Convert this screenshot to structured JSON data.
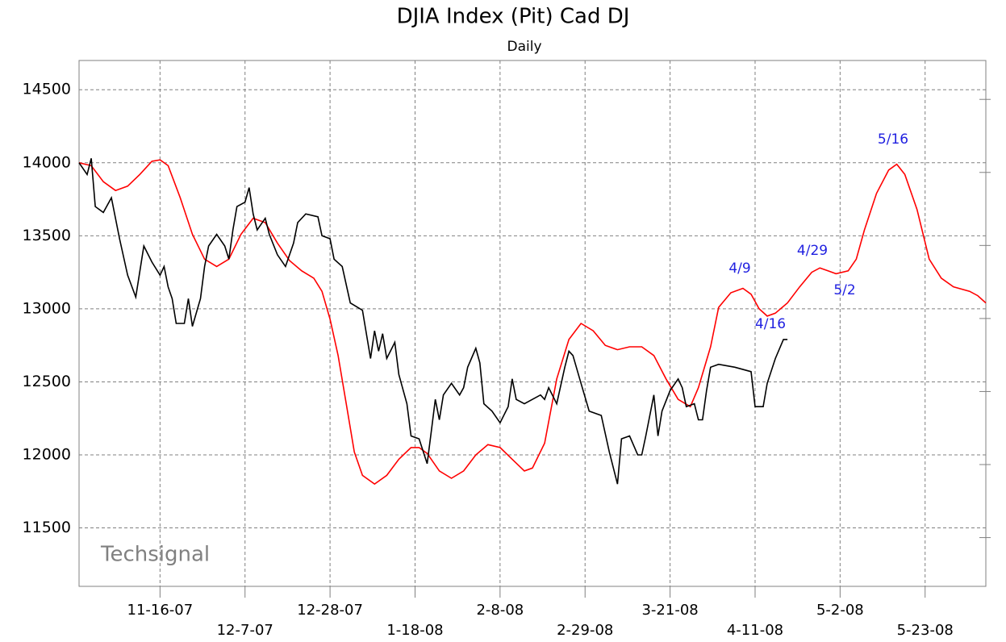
{
  "chart_data": {
    "type": "line",
    "title": "DJIA Index (Pit) Cad DJ",
    "subtitle": "Daily",
    "watermark": "Techsignal",
    "annotations": [
      "4/9",
      "4/16",
      "4/29",
      "5/2",
      "5/16"
    ],
    "annotation_color": "#1f1fe0",
    "grid": true,
    "xlim": [
      "10-27-07",
      "6-7-08"
    ],
    "xticks": [
      "11-16-07",
      "12-7-07",
      "12-28-07",
      "1-18-08",
      "2-8-08",
      "2-29-08",
      "3-21-08",
      "4-11-08",
      "5-2-08",
      "5-23-08"
    ],
    "ylim": [
      11100,
      14700
    ],
    "yticks": [
      11500,
      12000,
      12500,
      13000,
      13500,
      14000,
      14500
    ],
    "series": [
      {
        "name": "DJIA",
        "color": "#000000",
        "x": [
          "10-27-07",
          "10-29-07",
          "10-30-07",
          "10-31-07",
          "11-2-07",
          "11-4-07",
          "11-6-07",
          "11-8-07",
          "11-10-07",
          "11-12-07",
          "11-14-07",
          "11-16-07",
          "11-17-07",
          "11-18-07",
          "11-19-07",
          "11-20-07",
          "11-22-07",
          "11-23-07",
          "11-24-07",
          "11-26-07",
          "11-27-07",
          "11-28-07",
          "11-30-07",
          "12-2-07",
          "12-3-07",
          "12-4-07",
          "12-5-07",
          "12-7-07",
          "12-8-07",
          "12-9-07",
          "12-10-07",
          "12-12-07",
          "12-13-07",
          "12-15-07",
          "12-17-07",
          "12-19-07",
          "12-20-07",
          "12-22-07",
          "12-25-07",
          "12-26-07",
          "12-28-07",
          "12-29-07",
          "12-31-07",
          "1-2-08",
          "1-5-08",
          "1-7-08",
          "1-8-08",
          "1-9-08",
          "1-10-08",
          "1-11-08",
          "1-13-08",
          "1-14-08",
          "1-16-08",
          "1-17-08",
          "1-19-08",
          "1-21-08",
          "1-22-08",
          "1-23-08",
          "1-24-08",
          "1-25-08",
          "1-27-08",
          "1-29-08",
          "1-30-08",
          "1-31-08",
          "2-2-08",
          "2-3-08",
          "2-4-08",
          "2-6-08",
          "2-8-08",
          "2-10-08",
          "2-11-08",
          "2-12-08",
          "2-14-08",
          "2-18-08",
          "2-19-08",
          "2-20-08",
          "2-22-08",
          "2-24-08",
          "2-25-08",
          "2-26-08",
          "2-28-08",
          "3-1-08",
          "3-4-08",
          "3-6-08",
          "3-8-08",
          "3-9-08",
          "3-11-08",
          "3-13-08",
          "3-14-08",
          "3-15-08",
          "3-17-08",
          "3-18-08",
          "3-19-08",
          "3-21-08",
          "3-23-08",
          "3-24-08",
          "3-25-08",
          "3-27-08",
          "3-28-08",
          "3-29-08",
          "3-30-08",
          "3-31-08",
          "4-2-08",
          "4-6-08",
          "4-10-08",
          "4-11-08",
          "4-13-08",
          "4-14-08",
          "4-16-08",
          "4-18-08",
          "4-19-08"
        ],
        "values": [
          14000,
          13920,
          14030,
          13700,
          13660,
          13760,
          13480,
          13230,
          13080,
          13430,
          13320,
          13230,
          13290,
          13150,
          13070,
          12900,
          12900,
          13070,
          12880,
          13070,
          13290,
          13430,
          13510,
          13430,
          13340,
          13540,
          13700,
          13730,
          13830,
          13650,
          13540,
          13620,
          13510,
          13370,
          13290,
          13450,
          13590,
          13650,
          13630,
          13500,
          13480,
          13340,
          13290,
          13040,
          12990,
          12660,
          12850,
          12710,
          12830,
          12660,
          12770,
          12550,
          12350,
          12130,
          12110,
          11940,
          12160,
          12380,
          12240,
          12410,
          12490,
          12410,
          12460,
          12600,
          12730,
          12630,
          12350,
          12300,
          12220,
          12330,
          12520,
          12380,
          12350,
          12410,
          12380,
          12460,
          12350,
          12600,
          12710,
          12680,
          12490,
          12300,
          12270,
          12020,
          11800,
          12110,
          12130,
          12000,
          12000,
          12130,
          12410,
          12130,
          12300,
          12440,
          12520,
          12460,
          12330,
          12350,
          12240,
          12240,
          12440,
          12600,
          12620,
          12600,
          12570,
          12330,
          12330,
          12490,
          12660,
          12790,
          12790
        ]
      },
      {
        "name": "Cad",
        "color": "#ff0000",
        "x": [
          "10-27-07",
          "10-30-07",
          "11-2-07",
          "11-5-07",
          "11-8-07",
          "11-11-07",
          "11-14-07",
          "11-16-07",
          "11-18-07",
          "11-21-07",
          "11-24-07",
          "11-27-07",
          "11-30-07",
          "12-3-07",
          "12-6-07",
          "12-9-07",
          "12-12-07",
          "12-15-07",
          "12-18-07",
          "12-21-07",
          "12-24-07",
          "12-26-07",
          "12-28-07",
          "12-30-07",
          "1-1-08",
          "1-3-08",
          "1-5-08",
          "1-8-08",
          "1-11-08",
          "1-14-08",
          "1-17-08",
          "1-19-08",
          "1-21-08",
          "1-24-08",
          "1-27-08",
          "1-30-08",
          "2-2-08",
          "2-5-08",
          "2-8-08",
          "2-11-08",
          "2-14-08",
          "2-16-08",
          "2-19-08",
          "2-22-08",
          "2-25-08",
          "2-28-08",
          "3-2-08",
          "3-5-08",
          "3-8-08",
          "3-11-08",
          "3-14-08",
          "3-17-08",
          "3-20-08",
          "3-23-08",
          "3-26-08",
          "3-28-08",
          "3-31-08",
          "4-2-08",
          "4-5-08",
          "4-8-08",
          "4-10-08",
          "4-12-08",
          "4-14-08",
          "4-16-08",
          "4-19-08",
          "4-22-08",
          "4-25-08",
          "4-27-08",
          "4-29-08",
          "5-1-08",
          "5-4-08",
          "5-6-08",
          "5-8-08",
          "5-11-08",
          "5-14-08",
          "5-16-08",
          "5-18-08",
          "5-21-08",
          "5-24-08",
          "5-27-08",
          "5-30-08",
          "6-3-08",
          "6-5-08",
          "6-7-08"
        ],
        "values": [
          14000,
          13980,
          13870,
          13810,
          13840,
          13920,
          14010,
          14020,
          13980,
          13760,
          13510,
          13340,
          13290,
          13340,
          13510,
          13620,
          13590,
          13450,
          13330,
          13260,
          13210,
          13120,
          12930,
          12680,
          12350,
          12020,
          11860,
          11800,
          11860,
          11970,
          12050,
          12050,
          12010,
          11890,
          11840,
          11890,
          12000,
          12070,
          12050,
          11970,
          11890,
          11910,
          12080,
          12520,
          12790,
          12900,
          12850,
          12750,
          12720,
          12740,
          12740,
          12680,
          12520,
          12380,
          12330,
          12460,
          12740,
          13010,
          13110,
          13140,
          13100,
          13000,
          12950,
          12970,
          13040,
          13150,
          13250,
          13280,
          13260,
          13240,
          13260,
          13340,
          13540,
          13790,
          13950,
          13990,
          13920,
          13680,
          13340,
          13210,
          13150,
          13120,
          13090,
          13040
        ]
      }
    ]
  }
}
